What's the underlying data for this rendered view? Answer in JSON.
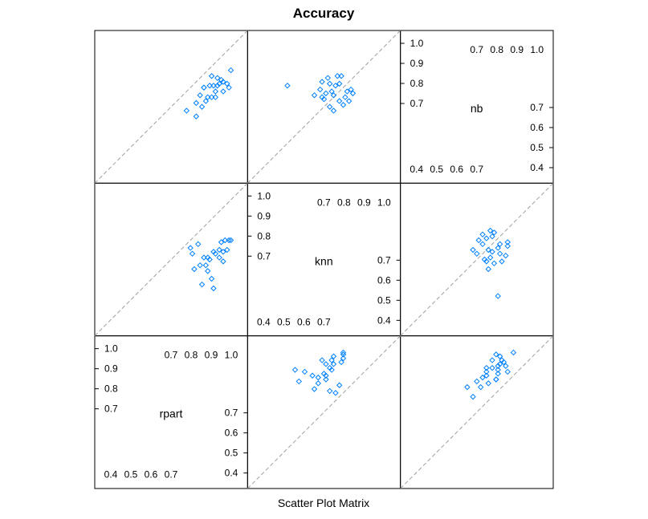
{
  "chart_data": {
    "type": "scatter",
    "title": "Accuracy",
    "xlabel": "Scatter Plot Matrix",
    "ylabel": "",
    "variables": [
      "rpart",
      "knn",
      "nb"
    ],
    "diagonal_tick_labels": {
      "upper": [
        "0.7",
        "0.8",
        "0.9",
        "1.0"
      ],
      "lower": [
        "0.4",
        "0.5",
        "0.6",
        "0.7"
      ]
    },
    "panels": [
      {
        "name": "knn-vs-rpart",
        "x_var": "rpart",
        "y_var": "knn",
        "xlim": [
          0.3,
          1.06
        ],
        "ylim": [
          0.3,
          1.06
        ],
        "points": [
          [
            0.78,
            0.74
          ],
          [
            0.79,
            0.71
          ],
          [
            0.8,
            0.63
          ],
          [
            0.82,
            0.76
          ],
          [
            0.83,
            0.65
          ],
          [
            0.84,
            0.55
          ],
          [
            0.85,
            0.69
          ],
          [
            0.86,
            0.65
          ],
          [
            0.87,
            0.69
          ],
          [
            0.87,
            0.62
          ],
          [
            0.88,
            0.68
          ],
          [
            0.89,
            0.58
          ],
          [
            0.9,
            0.53
          ],
          [
            0.9,
            0.72
          ],
          [
            0.91,
            0.71
          ],
          [
            0.93,
            0.73
          ],
          [
            0.93,
            0.69
          ],
          [
            0.94,
            0.77
          ],
          [
            0.95,
            0.72
          ],
          [
            0.95,
            0.67
          ],
          [
            0.96,
            0.78
          ],
          [
            0.97,
            0.73
          ],
          [
            0.98,
            0.78
          ],
          [
            0.99,
            0.78
          ]
        ]
      },
      {
        "name": "nb-vs-rpart",
        "x_var": "rpart",
        "y_var": "nb",
        "xlim": [
          0.3,
          1.06
        ],
        "ylim": [
          0.3,
          1.06
        ],
        "points": [
          [
            0.76,
            0.66
          ],
          [
            0.81,
            0.7
          ],
          [
            0.81,
            0.63
          ],
          [
            0.83,
            0.74
          ],
          [
            0.84,
            0.68
          ],
          [
            0.85,
            0.78
          ],
          [
            0.85,
            0.78
          ],
          [
            0.86,
            0.71
          ],
          [
            0.87,
            0.73
          ],
          [
            0.88,
            0.79
          ],
          [
            0.89,
            0.73
          ],
          [
            0.89,
            0.84
          ],
          [
            0.9,
            0.79
          ],
          [
            0.91,
            0.76
          ],
          [
            0.91,
            0.73
          ],
          [
            0.92,
            0.79
          ],
          [
            0.92,
            0.83
          ],
          [
            0.93,
            0.8
          ],
          [
            0.94,
            0.82
          ],
          [
            0.95,
            0.76
          ],
          [
            0.95,
            0.81
          ],
          [
            0.97,
            0.8
          ],
          [
            0.98,
            0.78
          ],
          [
            0.99,
            0.87
          ]
        ]
      },
      {
        "name": "nb-vs-knn",
        "x_var": "knn",
        "y_var": "nb",
        "xlim": [
          0.3,
          1.06
        ],
        "ylim": [
          0.3,
          1.06
        ],
        "points": [
          [
            0.49,
            0.79
          ],
          [
            0.63,
            0.74
          ],
          [
            0.66,
            0.77
          ],
          [
            0.67,
            0.73
          ],
          [
            0.67,
            0.81
          ],
          [
            0.68,
            0.72
          ],
          [
            0.69,
            0.75
          ],
          [
            0.7,
            0.83
          ],
          [
            0.71,
            0.68
          ],
          [
            0.71,
            0.8
          ],
          [
            0.72,
            0.76
          ],
          [
            0.73,
            0.66
          ],
          [
            0.73,
            0.74
          ],
          [
            0.74,
            0.79
          ],
          [
            0.75,
            0.84
          ],
          [
            0.76,
            0.71
          ],
          [
            0.76,
            0.8
          ],
          [
            0.77,
            0.84
          ],
          [
            0.78,
            0.69
          ],
          [
            0.79,
            0.73
          ],
          [
            0.8,
            0.76
          ],
          [
            0.81,
            0.71
          ],
          [
            0.82,
            0.77
          ],
          [
            0.83,
            0.75
          ]
        ]
      }
    ],
    "diagonal_reference_line": true,
    "point_color": "#0080ff",
    "reference_line_color": "#a0a0a0"
  }
}
